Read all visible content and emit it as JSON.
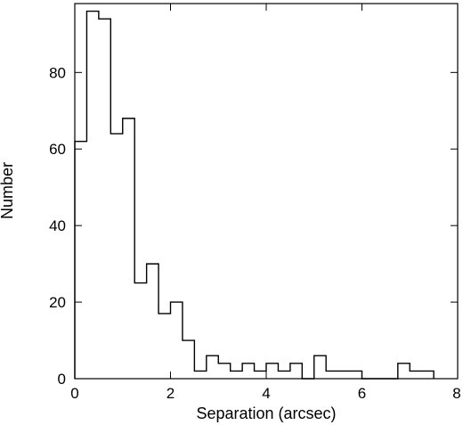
{
  "chart_data": {
    "type": "bar",
    "subtype": "histogram",
    "title": "",
    "xlabel": "Separation (arcsec)",
    "ylabel": "Number",
    "xlim": [
      0,
      8
    ],
    "ylim": [
      0,
      98
    ],
    "xticks": [
      0,
      2,
      4,
      6,
      8
    ],
    "yticks": [
      0,
      20,
      40,
      60,
      80
    ],
    "grid": false,
    "bin_width": 0.25,
    "bin_edges": [
      0,
      0.25,
      0.5,
      0.75,
      1.0,
      1.25,
      1.5,
      1.75,
      2.0,
      2.25,
      2.5,
      2.75,
      3.0,
      3.25,
      3.5,
      3.75,
      4.0,
      4.25,
      4.5,
      4.75,
      5.0,
      5.25,
      5.5,
      5.75,
      6.0,
      6.25,
      6.5,
      6.75,
      7.0,
      7.25,
      7.5
    ],
    "values": [
      62,
      96,
      94,
      64,
      68,
      25,
      30,
      17,
      20,
      10,
      2,
      6,
      4,
      2,
      4,
      2,
      4,
      2,
      4,
      0,
      6,
      2,
      2,
      2,
      0,
      0,
      0,
      4,
      2,
      2
    ],
    "line_color": "#000000"
  }
}
